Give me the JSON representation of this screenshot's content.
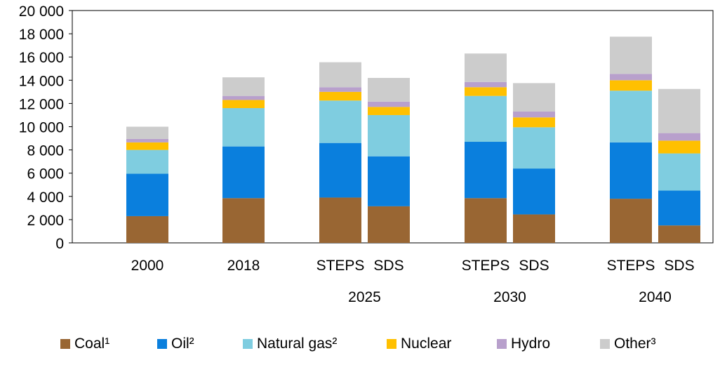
{
  "chart_data": {
    "type": "bar",
    "stacked": true,
    "ylim": [
      0,
      20000
    ],
    "yticks": [
      0,
      2000,
      4000,
      6000,
      8000,
      10000,
      12000,
      14000,
      16000,
      18000,
      20000
    ],
    "ytick_labels": [
      "0",
      "2 000",
      "4 000",
      "6 000",
      "8 000",
      "10 000",
      "12 000",
      "14 000",
      "16 000",
      "18 000",
      "20 000"
    ],
    "grid": false,
    "legend_position": "bottom",
    "categories": [
      "2000",
      "2018",
      "2025 STEPS",
      "2025 SDS",
      "2030 STEPS",
      "2030 SDS",
      "2040 STEPS",
      "2040 SDS"
    ],
    "bar_labels": [
      "2000",
      "2018",
      "STEPS",
      "SDS",
      "STEPS",
      "SDS",
      "STEPS",
      "SDS"
    ],
    "group_labels": [
      "2025",
      "2030",
      "2040"
    ],
    "series": [
      {
        "name": "Coal¹",
        "color": "#996633",
        "values": [
          2300,
          3850,
          3900,
          3150,
          3850,
          2450,
          3800,
          1500
        ]
      },
      {
        "name": "Oil²",
        "color": "#0a7fdd",
        "values": [
          3650,
          4450,
          4700,
          4300,
          4850,
          3950,
          4850,
          3000
        ]
      },
      {
        "name": "Natural gas²",
        "color": "#7fcde0",
        "values": [
          2050,
          3300,
          3650,
          3550,
          3950,
          3550,
          4450,
          3200
        ]
      },
      {
        "name": "Nuclear",
        "color": "#ffc000",
        "values": [
          650,
          700,
          750,
          700,
          750,
          850,
          900,
          1100
        ]
      },
      {
        "name": "Hydro",
        "color": "#b8a0cc",
        "values": [
          300,
          350,
          400,
          450,
          450,
          500,
          550,
          650
        ]
      },
      {
        "name": "Other³",
        "color": "#cccccc",
        "values": [
          1050,
          1600,
          2150,
          2050,
          2450,
          2450,
          3200,
          3800
        ]
      }
    ]
  }
}
